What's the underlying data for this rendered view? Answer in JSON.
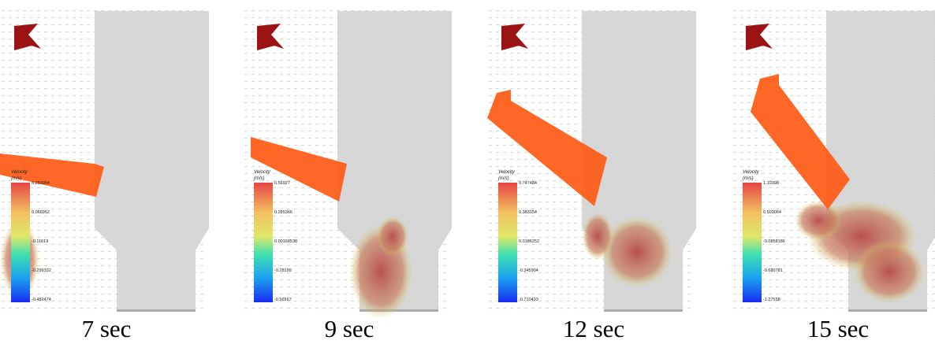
{
  "panels": [
    {
      "caption": "7 sec",
      "colorbar": {
        "title": "Velocity",
        "unit": "(m/s)",
        "ticks": [
          "0.250094",
          "0.066952",
          "-0.11619",
          "-0.299332",
          "-0.482474"
        ]
      }
    },
    {
      "caption": "9 sec",
      "colorbar": {
        "title": "Velocity",
        "unit": "(m/s)",
        "ticks": [
          "0.56927",
          "0.285366",
          "0.00168538",
          "-0.28199",
          "-0.56567"
        ]
      }
    },
    {
      "caption": "12 sec",
      "colorbar": {
        "title": "Velocity",
        "unit": "(m/s)",
        "ticks": [
          "0.747484",
          "0.383154",
          "0.0186252",
          "-0.345904",
          "-0.710433"
        ]
      }
    },
    {
      "caption": "15 sec",
      "colorbar": {
        "title": "Velocity",
        "unit": "(m/s)",
        "ticks": [
          "1.10398",
          "0.509064",
          "-0.0858186",
          "-0.680781",
          "-1.27558"
        ]
      }
    }
  ]
}
